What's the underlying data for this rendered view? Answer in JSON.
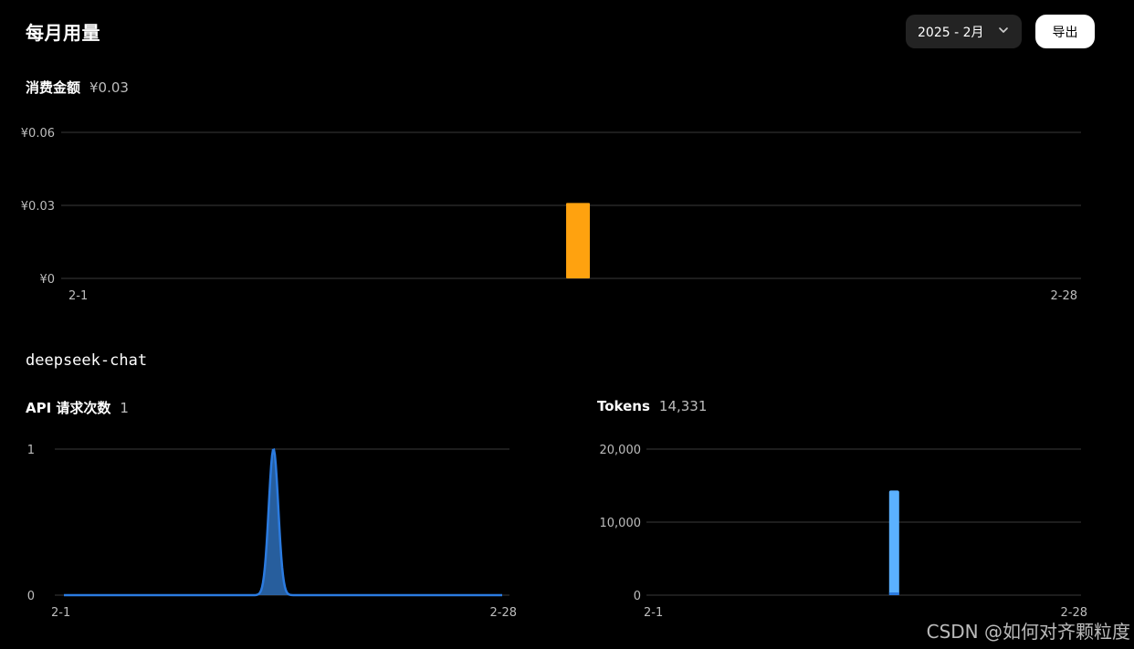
{
  "header": {
    "title": "每月用量",
    "month_select": "2025 - 2月",
    "export_label": "导出"
  },
  "cost": {
    "label": "消费金额",
    "value": "¥0.03"
  },
  "model": {
    "name": "deepseek-chat"
  },
  "requests": {
    "label": "API 请求次数",
    "value": "1"
  },
  "tokens": {
    "label": "Tokens",
    "value": "14,331"
  },
  "watermark": "CSDN @如何对齐颗粒度",
  "colors": {
    "cost_bar": "#FFA20F",
    "requests_line": "#2B7BE0",
    "requests_fill": "#2E6FB8",
    "tokens_bar": "#5BB1FF",
    "tokens_bar_base": "#2B7BE0",
    "grid": "#3a3a3a"
  },
  "chart_data": [
    {
      "type": "bar",
      "title": "",
      "x": {
        "start": "2-1",
        "end": "2-28",
        "days": 28
      },
      "points": [
        {
          "day": 14,
          "value": 0.031
        }
      ],
      "yticks": [
        {
          "value": 0,
          "label": "¥0"
        },
        {
          "value": 0.03,
          "label": "¥0.03"
        },
        {
          "value": 0.06,
          "label": "¥0.06"
        }
      ],
      "ylim": [
        0,
        0.06
      ],
      "grid": true
    },
    {
      "type": "area",
      "title": "",
      "x": {
        "start": "2-1",
        "end": "2-28",
        "days": 28
      },
      "points": [
        {
          "day": 12,
          "value": 1
        }
      ],
      "yticks": [
        {
          "value": 0,
          "label": "0"
        },
        {
          "value": 1,
          "label": "1"
        }
      ],
      "ylim": [
        0,
        1
      ],
      "grid": true
    },
    {
      "type": "bar",
      "title": "",
      "x": {
        "start": "2-1",
        "end": "2-28",
        "days": 28
      },
      "points": [
        {
          "day": 12,
          "value": 14331
        }
      ],
      "yticks": [
        {
          "value": 0,
          "label": "0"
        },
        {
          "value": 10000,
          "label": "10,000"
        },
        {
          "value": 20000,
          "label": "20,000"
        }
      ],
      "ylim": [
        0,
        20000
      ],
      "grid": true
    }
  ]
}
